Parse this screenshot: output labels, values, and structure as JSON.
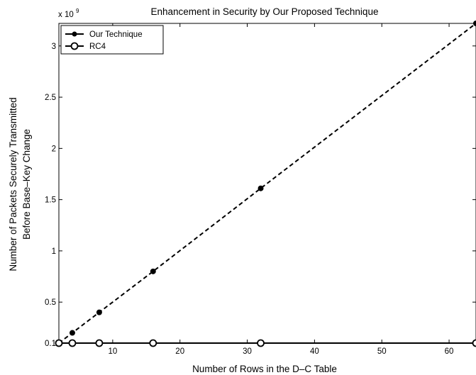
{
  "chart_data": {
    "type": "line",
    "title": "Enhancement in Security by Our Proposed Technique",
    "xlabel": "Number of Rows in the D–C Table",
    "ylabel": [
      "Number of Packets Securely Transmitted",
      "Before Base–Key Change"
    ],
    "exponent_label": "x 10",
    "exponent_power": "9",
    "xlim": [
      2,
      64
    ],
    "ylim": [
      0.1,
      3.22
    ],
    "x_ticks": [
      10,
      20,
      30,
      40,
      50,
      60
    ],
    "x_tick_labels": [
      "10",
      "20",
      "30",
      "40",
      "50",
      "60"
    ],
    "y_ticks": [
      0.1,
      0.5,
      1,
      1.5,
      2,
      2.5,
      3
    ],
    "y_tick_labels": [
      "0.1",
      "0.5",
      "1",
      "1.5",
      "2",
      "2.5",
      "3"
    ],
    "grid": false,
    "legend_position": "top-left",
    "series": [
      {
        "name": "Our Technique",
        "marker": "filled-circle",
        "line_style": "dashed",
        "color": "#000000",
        "x": [
          2,
          4,
          8,
          16,
          32,
          64
        ],
        "y": [
          0.1,
          0.2,
          0.4,
          0.8,
          1.61,
          3.22
        ]
      },
      {
        "name": "RC4",
        "marker": "open-circle",
        "line_style": "solid",
        "color": "#000000",
        "x": [
          2,
          4,
          8,
          16,
          32,
          64
        ],
        "y": [
          0.0,
          0.0,
          0.0,
          0.0,
          0.0,
          0.0
        ]
      }
    ]
  }
}
